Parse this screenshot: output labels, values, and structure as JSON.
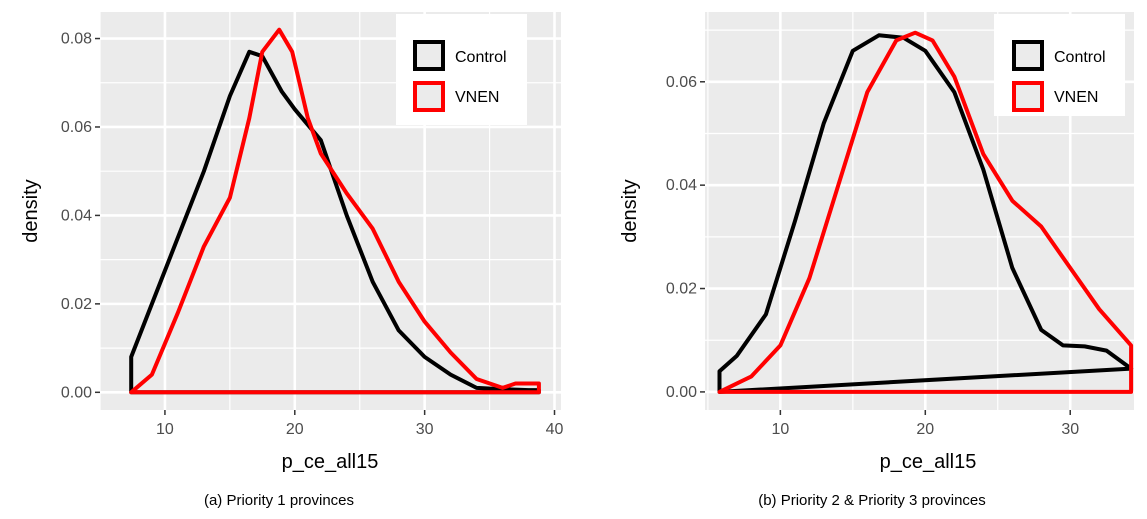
{
  "chart_data": [
    {
      "type": "area",
      "caption": "(a) Priority 1 provinces",
      "xlabel": "p_ce_all15",
      "ylabel": "density",
      "xlim": [
        5,
        40.5
      ],
      "ylim": [
        -0.004,
        0.086
      ],
      "xticks": [
        10,
        20,
        30,
        40
      ],
      "xtick_labels": [
        "10",
        "20",
        "30",
        "40"
      ],
      "yticks": [
        0,
        0.02,
        0.04,
        0.06,
        0.08
      ],
      "ytick_labels": [
        "0.00",
        "0.02",
        "0.04",
        "0.06",
        "0.08"
      ],
      "grid": true,
      "legend_position": "top-right",
      "series": [
        {
          "name": "Control",
          "color": "#000000",
          "x": [
            7.4,
            7.4,
            9,
            11,
            13,
            15,
            16.5,
            17.5,
            19,
            20,
            22,
            24,
            26,
            28,
            30,
            32,
            34,
            36,
            38,
            38.8,
            38.8
          ],
          "y": [
            0,
            0.008,
            0.02,
            0.035,
            0.05,
            0.067,
            0.077,
            0.076,
            0.068,
            0.064,
            0.057,
            0.04,
            0.025,
            0.014,
            0.008,
            0.004,
            0.001,
            0.0007,
            0.0005,
            0.0005,
            0
          ]
        },
        {
          "name": "VNEN",
          "color": "#ff0000",
          "x": [
            7.4,
            9,
            11,
            13,
            15,
            16.5,
            17.5,
            18.8,
            19.8,
            21,
            22,
            24,
            26,
            28,
            30,
            32,
            34,
            36,
            37,
            38,
            38.8,
            38.8
          ],
          "y": [
            0,
            0.004,
            0.018,
            0.033,
            0.044,
            0.062,
            0.077,
            0.082,
            0.077,
            0.062,
            0.054,
            0.045,
            0.037,
            0.025,
            0.016,
            0.009,
            0.003,
            0.001,
            0.002,
            0.002,
            0.002,
            0
          ]
        }
      ]
    },
    {
      "type": "area",
      "caption": "(b) Priority 2 & Priority 3 provinces",
      "xlabel": "p_ce_all15",
      "ylabel": "density",
      "xlim": [
        4.8,
        34.4
      ],
      "ylim": [
        -0.0035,
        0.0735
      ],
      "xticks": [
        10,
        20,
        30
      ],
      "xtick_labels": [
        "10",
        "20",
        "30"
      ],
      "yticks": [
        0,
        0.02,
        0.04,
        0.06
      ],
      "ytick_labels": [
        "0.00",
        "0.02",
        "0.04",
        "0.06"
      ],
      "grid": true,
      "legend_position": "top-right",
      "series": [
        {
          "name": "Control",
          "color": "#000000",
          "x": [
            5.8,
            5.8,
            7,
            9,
            11,
            13,
            15,
            16.8,
            18.5,
            20,
            22,
            24,
            26,
            28,
            29.5,
            31,
            32.5,
            34.2
          ],
          "y": [
            0,
            0.004,
            0.007,
            0.015,
            0.033,
            0.052,
            0.066,
            0.069,
            0.0685,
            0.066,
            0.058,
            0.043,
            0.024,
            0.012,
            0.009,
            0.0088,
            0.008,
            0.0045
          ]
        },
        {
          "name": "VNEN",
          "color": "#ff0000",
          "x": [
            5.8,
            8,
            10,
            12,
            14,
            16,
            18,
            19.3,
            20.5,
            22,
            24,
            26,
            28,
            30,
            32,
            34.2,
            34.2,
            5.8
          ],
          "y": [
            0,
            0.003,
            0.009,
            0.022,
            0.04,
            0.058,
            0.068,
            0.0695,
            0.068,
            0.061,
            0.046,
            0.037,
            0.032,
            0.024,
            0.016,
            0.009,
            0,
            0
          ]
        }
      ]
    }
  ]
}
